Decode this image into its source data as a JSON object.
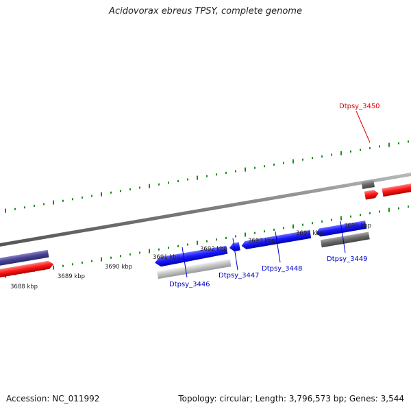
{
  "title": "Acidovorax ebreus TPSY, complete genome",
  "footer": {
    "accession": "Accession: NC_011992",
    "summary": "Topology: circular; Length: 3,796,573 bp; Genes: 3,544"
  },
  "scale_labels": [
    "3688 kbp",
    "3689 kbp",
    "3690 kbp",
    "3691 kbp",
    "3692 kbp",
    "3693 kbp",
    "3694 kbp",
    "3695 kbp"
  ],
  "genes": [
    {
      "id": "Dtpsy_3446",
      "strand": "-",
      "color": "#0000ee"
    },
    {
      "id": "Dtpsy_3447",
      "strand": "-",
      "color": "#0000ee"
    },
    {
      "id": "Dtpsy_3448",
      "strand": "-",
      "color": "#0000ee"
    },
    {
      "id": "Dtpsy_3449",
      "strand": "-",
      "color": "#0000ee"
    },
    {
      "id": "Dtpsy_3450",
      "strand": "+",
      "color": "#ff0000"
    }
  ],
  "colors": {
    "plus_strand": "#ff0000",
    "minus_strand": "#0000ee",
    "other_gene": "#4a4496",
    "rna_gene": "#777777",
    "pseudo_gene": "#bbbbbb",
    "backbone": "#888888",
    "ticks": "#1e8a1e"
  }
}
